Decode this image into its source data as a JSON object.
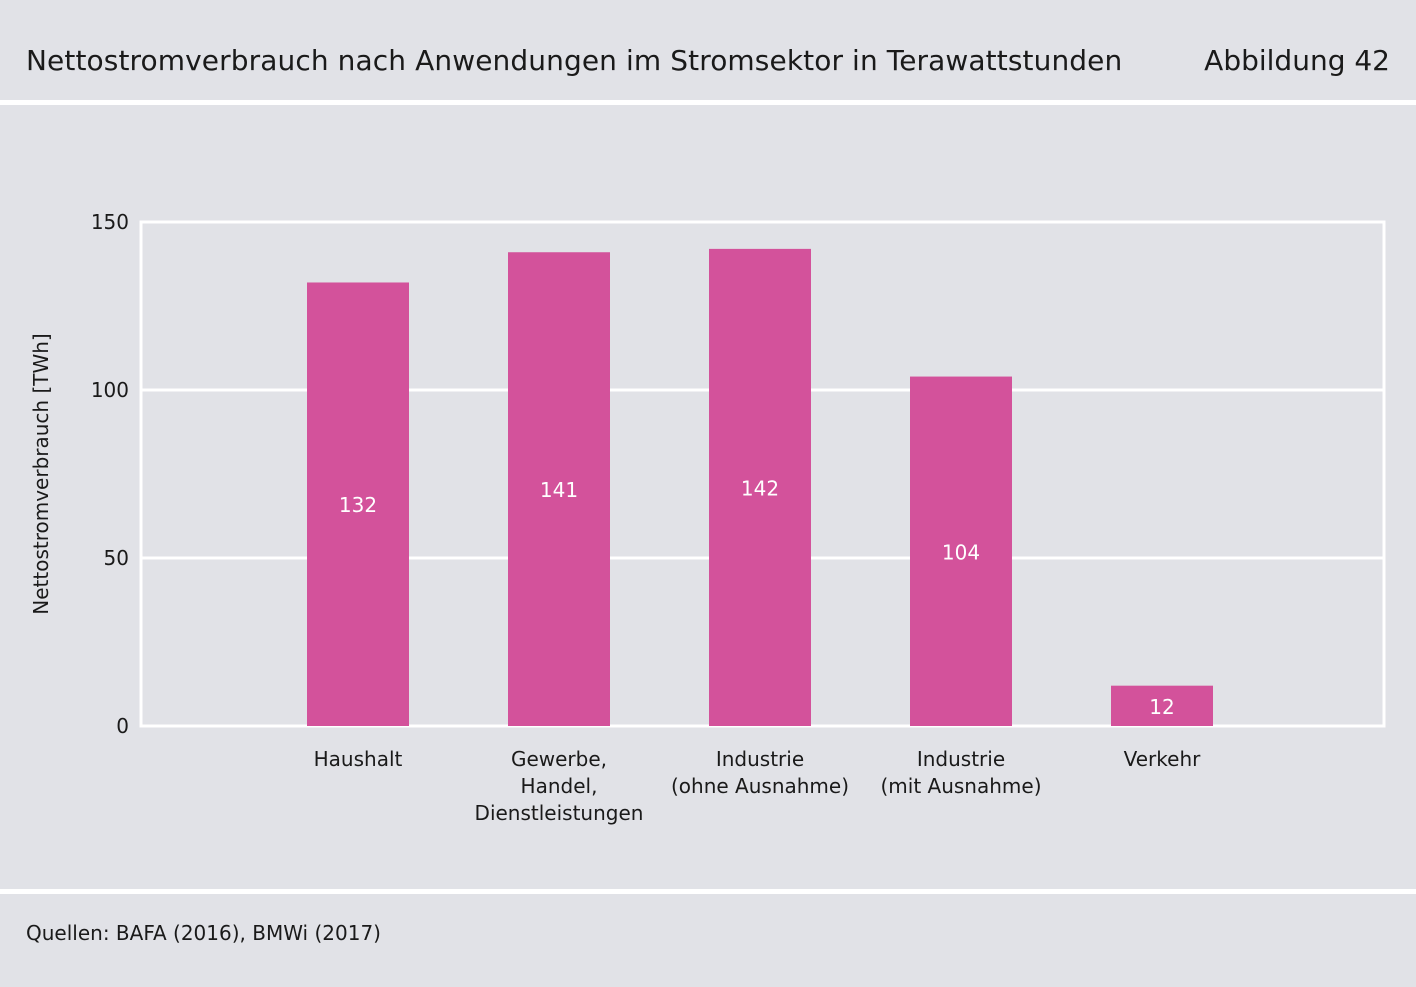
{
  "header": {
    "title": "Nettostromverbrauch nach Anwendungen im Stromsektor in Terawattstunden",
    "figure_label": "Abbildung 42"
  },
  "footer": {
    "source": "Quellen: BAFA (2016), BMWi (2017)"
  },
  "colors": {
    "background": "#e1e2e7",
    "bar": "#d3529b",
    "grid": "#ffffff",
    "bar_label": "#ffffff",
    "text": "#1a1a1a"
  },
  "chart_data": {
    "type": "bar",
    "title": "Nettostromverbrauch nach Anwendungen im Stromsektor in Terawattstunden",
    "ylabel": "Nettostromverbrauch [TWh]",
    "xlabel": "",
    "ylim": [
      0,
      150
    ],
    "yticks": [
      0,
      50,
      100,
      150
    ],
    "grid": true,
    "categories": [
      [
        "Haushalt"
      ],
      [
        "Gewerbe,",
        "Handel,",
        "Dienstleistungen"
      ],
      [
        "Industrie",
        "(ohne Ausnahme)"
      ],
      [
        "Industrie",
        "(mit Ausnahme)"
      ],
      [
        "Verkehr"
      ]
    ],
    "values": [
      132,
      141,
      142,
      104,
      12
    ],
    "data_labels": [
      "132",
      "141",
      "142",
      "104",
      "12"
    ]
  }
}
